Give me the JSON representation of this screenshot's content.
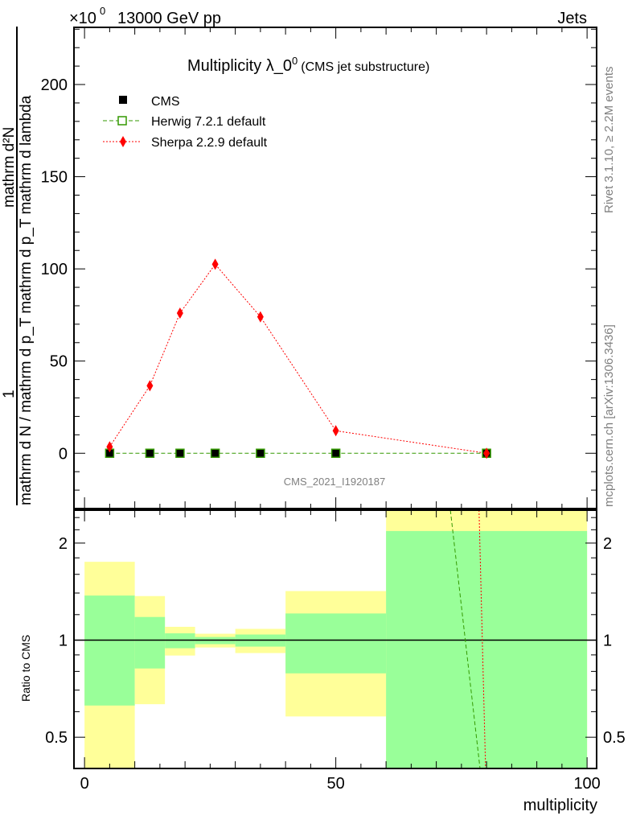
{
  "header": {
    "energy_label": "13000 GeV pp",
    "process_label": "Jets",
    "exponent_label": "×10",
    "exponent_power": "0"
  },
  "side_text": {
    "rivet": "Rivet 3.1.10, ≥ 2.2M events",
    "mcplots": "mcplots.cern.ch [arXiv:1306.3436]"
  },
  "watermark": "CMS_2021_I1920187",
  "chart_data": [
    {
      "type": "line",
      "title": "Multiplicity λ_0",
      "title_sup": "0",
      "subtitle": "(CMS jet substructure)",
      "ylabel_numerator": "mathrm d²N",
      "ylabel_one": "1",
      "ylabel_denominator": "mathrm d N / mathrm d p_T mathrm d p_T mathrm d lambda",
      "xlabel": "multiplicity",
      "xlim": [
        -2.1,
        101.9
      ],
      "ylim": [
        -30,
        231
      ],
      "yticks": [
        0,
        50,
        100,
        150,
        200
      ],
      "ytick_labels": [
        "0",
        "50",
        "100",
        "150",
        "200"
      ],
      "xticks": [
        0,
        50,
        100
      ],
      "xtick_labels": [
        "0",
        "50",
        "100"
      ],
      "bin_edges": [
        0,
        10,
        16,
        22,
        30,
        40,
        60,
        100
      ],
      "x": [
        5,
        13,
        19,
        26,
        35,
        50,
        80
      ],
      "legend": "top-left",
      "series": [
        {
          "name": "CMS",
          "color": "#000000",
          "style": "marker-square",
          "values": [
            0,
            0,
            0,
            0,
            0,
            0,
            0
          ]
        },
        {
          "name": "Herwig 7.2.1 default",
          "color": "#339900",
          "style": "dashed-open-square",
          "values": [
            0,
            0,
            0,
            0,
            0,
            0,
            0
          ]
        },
        {
          "name": "Sherpa 2.2.9 default",
          "color": "#ff0000",
          "style": "dotted-diamond",
          "values": [
            3.5,
            36.6,
            76,
            102.5,
            74,
            12.2,
            0
          ]
        }
      ]
    },
    {
      "type": "area",
      "ylabel": "Ratio to CMS",
      "scale": "log2",
      "ylim": [
        0.4,
        2.53
      ],
      "yticks": [
        0.5,
        1,
        2
      ],
      "ytick_labels": [
        "0.5",
        "1",
        "2"
      ],
      "bin_edges": [
        0,
        10,
        16,
        22,
        30,
        40,
        60,
        100
      ],
      "band_stat_low": [
        0.627,
        0.817,
        0.944,
        0.972,
        0.955,
        0.789,
        0.3
      ],
      "band_stat_high": [
        1.375,
        1.18,
        1.05,
        1.023,
        1.041,
        1.21,
        2.18
      ],
      "band_total_low": [
        0.3,
        0.633,
        0.896,
        0.949,
        0.912,
        0.58,
        0.3
      ],
      "band_total_high": [
        1.75,
        1.37,
        1.1,
        1.047,
        1.084,
        1.42,
        3.0
      ],
      "stat_color": "#99ff99",
      "total_color": "#ffff99",
      "ratio_lines": [
        {
          "name": "Herwig 7.2.1 default",
          "color": "#339900",
          "dash": "5,3",
          "points": [
            [
              72.8,
              2.53
            ],
            [
              78.7,
              0.4
            ]
          ]
        },
        {
          "name": "Sherpa 2.2.9 default",
          "color": "#ff0000",
          "dash": "2,2",
          "points": [
            [
              78.5,
              2.53
            ],
            [
              79.8,
              0.4
            ]
          ]
        }
      ]
    }
  ]
}
